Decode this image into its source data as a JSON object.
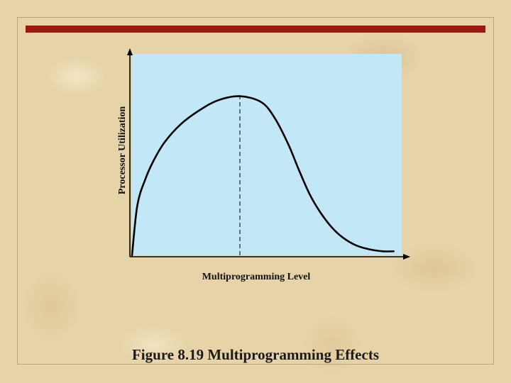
{
  "slide": {
    "caption": "Figure 8.19 Multiprogramming Effects",
    "accent_color": "#9b1a10"
  },
  "chart_data": {
    "type": "line",
    "title": "",
    "xlabel": "Multiprogramming Level",
    "ylabel": "Processor Utilization",
    "xlim": [
      0,
      100
    ],
    "ylim": [
      0,
      100
    ],
    "grid": false,
    "background_color": "#c2e8f8",
    "series": [
      {
        "x": [
          0,
          2,
          5,
          8,
          12,
          18,
          25,
          32,
          40,
          48,
          53,
          58,
          62,
          66,
          70,
          74,
          78,
          83,
          88,
          93,
          97
        ],
        "values": [
          0,
          25,
          38,
          47,
          56,
          65,
          72,
          77,
          79,
          76,
          68,
          55,
          42,
          30,
          21,
          14,
          9,
          5,
          3,
          2,
          2
        ],
        "color": "#000000"
      }
    ],
    "reference_lines": [
      {
        "x": 40,
        "y_from": 0,
        "y_to": 79,
        "style": "dashed"
      }
    ]
  }
}
